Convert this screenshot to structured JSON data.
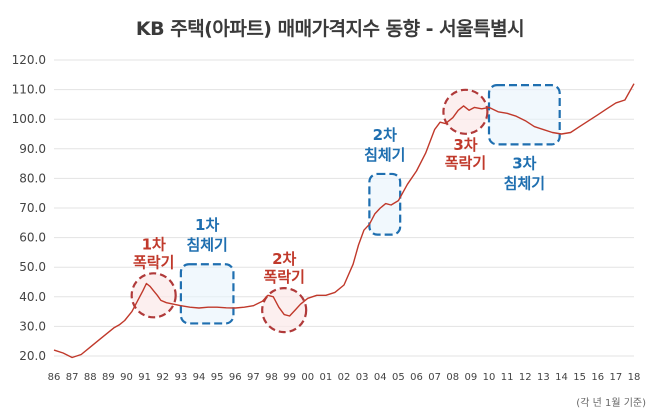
{
  "chart_data": {
    "type": "line",
    "title": "KB 주택(아파트) 매매가격지수 동향 - 서울특별시",
    "xlabel": "",
    "ylabel": "",
    "note": "(각 년 1월 기준)",
    "ylim": [
      20,
      120
    ],
    "yticks": [
      "20.0",
      "30.0",
      "40.0",
      "50.0",
      "60.0",
      "70.0",
      "80.0",
      "90.0",
      "100.0",
      "110.0",
      "120.0"
    ],
    "xticks": [
      "86",
      "87",
      "88",
      "89",
      "90",
      "91",
      "92",
      "93",
      "94",
      "95",
      "96",
      "97",
      "98",
      "99",
      "00",
      "01",
      "02",
      "03",
      "04",
      "05",
      "06",
      "07",
      "08",
      "09",
      "10",
      "11",
      "12",
      "13",
      "14",
      "15",
      "16",
      "17",
      "18"
    ],
    "grid": "horizontal",
    "color": "#c0392b",
    "series": [
      {
        "x": [
          86.0,
          86.5,
          87.0,
          87.5,
          88.0,
          88.5,
          89.0,
          89.3,
          89.6,
          89.9,
          90.3,
          90.6,
          90.9,
          91.1,
          91.3,
          91.5,
          91.7,
          91.9,
          92.2,
          92.6,
          93.0,
          93.5,
          94.0,
          94.5,
          95.0,
          95.5,
          96.0,
          96.5,
          97.0,
          97.5,
          97.8,
          98.1,
          98.4,
          98.7,
          99.0,
          99.3,
          99.6,
          100.0,
          100.5,
          101.0,
          101.5,
          102.0,
          102.5,
          102.8,
          103.1,
          103.4,
          103.7,
          104.0,
          104.3,
          104.6,
          105.0,
          105.5,
          106.0,
          106.5,
          107.0,
          107.3,
          107.6,
          108.0,
          108.3,
          108.6,
          108.9,
          109.2,
          109.6,
          110.0,
          110.5,
          111.0,
          111.5,
          112.0,
          112.5,
          113.0,
          113.5,
          114.0,
          114.5,
          115.0,
          115.5,
          116.0,
          116.5,
          117.0,
          117.5,
          118.0
        ],
        "y": [
          22.0,
          21.0,
          19.5,
          20.5,
          23.0,
          25.5,
          28.0,
          29.5,
          30.5,
          32.0,
          35.0,
          38.5,
          42.0,
          44.5,
          43.5,
          42.0,
          40.5,
          38.8,
          38.0,
          37.5,
          37.0,
          36.5,
          36.2,
          36.5,
          36.5,
          36.3,
          36.2,
          36.5,
          37.0,
          38.5,
          40.5,
          40.0,
          36.5,
          34.0,
          33.5,
          35.5,
          37.5,
          39.5,
          40.5,
          40.5,
          41.5,
          44.0,
          51.0,
          57.5,
          62.5,
          64.5,
          68.0,
          70.0,
          71.5,
          71.0,
          72.5,
          78.0,
          82.5,
          88.5,
          96.5,
          99.0,
          98.5,
          100.5,
          103.0,
          104.5,
          103.0,
          104.0,
          103.5,
          104.0,
          102.5,
          102.0,
          101.0,
          99.5,
          97.5,
          96.5,
          95.5,
          95.0,
          95.5,
          97.5,
          99.5,
          101.5,
          103.5,
          105.5,
          106.5,
          112.0
        ]
      }
    ],
    "annotations": [
      {
        "label_line1": "1차",
        "label_line2": "폭락기",
        "kind": "crash",
        "x": 91.5,
        "y": 40.5
      },
      {
        "label_line1": "1차",
        "label_line2": "침체기",
        "kind": "slump",
        "x0": 93.0,
        "x1": 95.9,
        "y0": 31.0,
        "y1": 51.0
      },
      {
        "label_line1": "2차",
        "label_line2": "폭락기",
        "kind": "crash",
        "x": 98.7,
        "y": 35.5
      },
      {
        "label_line1": "2차",
        "label_line2": "침체기",
        "kind": "slump",
        "x0": 103.4,
        "x1": 105.1,
        "y0": 61.0,
        "y1": 81.5
      },
      {
        "label_line1": "3차",
        "label_line2": "폭락기",
        "kind": "crash",
        "x": 108.7,
        "y": 102.5
      },
      {
        "label_line1": "3차",
        "label_line2": "침체기",
        "kind": "slump",
        "x0": 110.0,
        "x1": 113.9,
        "y0": 91.5,
        "y1": 111.5
      }
    ]
  }
}
